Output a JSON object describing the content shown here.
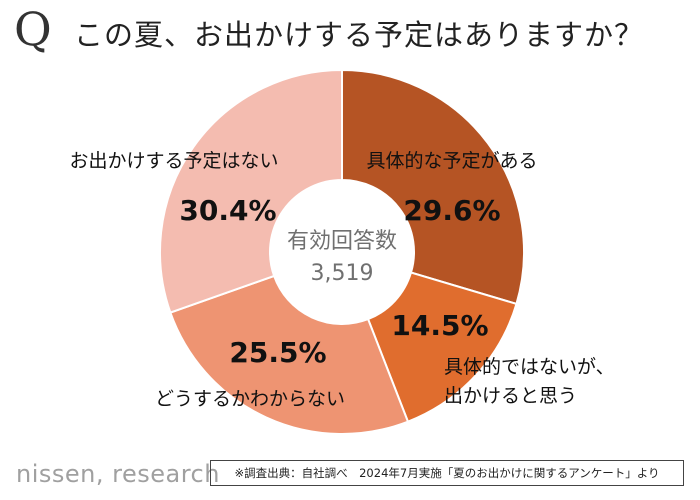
{
  "header": {
    "q_mark": "Q",
    "title": "この夏、お出かけする予定はありますか？"
  },
  "chart_data": {
    "type": "pie",
    "donut": true,
    "center_label": "有効回答数",
    "center_value": "3,519",
    "slices": [
      {
        "label": "具体的な予定がある",
        "value": 29.6,
        "value_label": "29.6%",
        "color": "#b55424"
      },
      {
        "label": "具体的ではないが、出かけると思う",
        "label_lines": [
          "具体的ではないが、",
          "出かけると思う"
        ],
        "value": 14.5,
        "value_label": "14.5%",
        "color": "#e06d2e"
      },
      {
        "label": "どうするかわからない",
        "value": 25.5,
        "value_label": "25.5%",
        "color": "#ee9472"
      },
      {
        "label": "お出かけする予定はない",
        "value": 30.4,
        "value_label": "30.4%",
        "color": "#f4bcb0"
      }
    ]
  },
  "footer": {
    "logo": "nissen, research",
    "note": "※調査出典：自社調べ　2024年7月実施「夏のお出かけに関するアンケート」より"
  }
}
